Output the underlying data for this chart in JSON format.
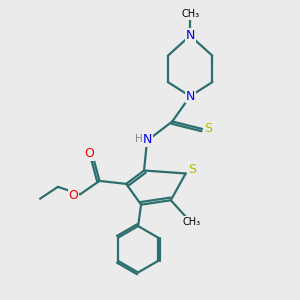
{
  "background_color": "#ebebeb",
  "atom_colors": {
    "N": "#0000ee",
    "O": "#ee0000",
    "S": "#b8b800",
    "C": "#000000",
    "H": "#888888"
  },
  "bond_color": "#2d6e6e",
  "bond_lw": 1.6,
  "figsize": [
    3.0,
    3.0
  ],
  "dpi": 100,
  "xlim": [
    0,
    10
  ],
  "ylim": [
    0,
    10
  ]
}
